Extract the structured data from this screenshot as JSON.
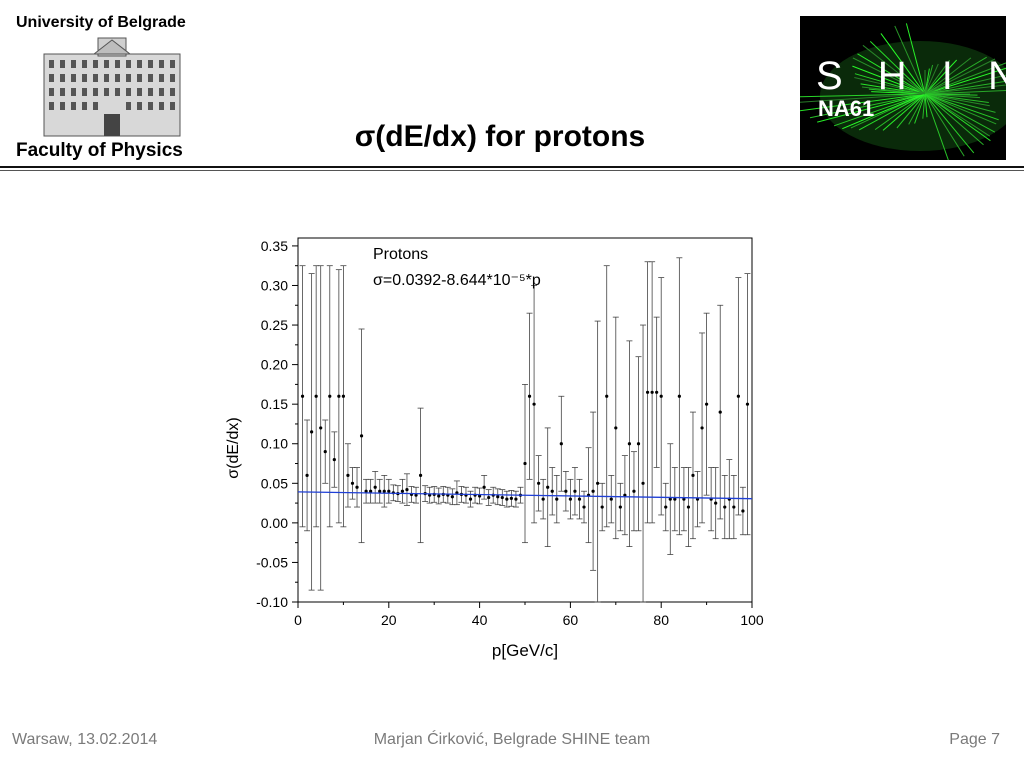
{
  "header": {
    "university": "University of Belgrade",
    "faculty": "Faculty of Physics",
    "title": "σ(dE/dx) for protons",
    "logo_main": "S H I N E",
    "logo_sub": "NA61"
  },
  "footer": {
    "left": "Warsaw, 13.02.2014",
    "center": "Marjan Ćirković, Belgrade SHINE team",
    "right": "Page 7"
  },
  "colors": {
    "fit_line": "#1f3fd6",
    "points": "#000000",
    "rule": "#111111"
  },
  "chart_data": {
    "type": "scatter",
    "xlabel": "p[GeV/c]",
    "ylabel": "σ(dE/dx)",
    "xlim": [
      0,
      100
    ],
    "ylim": [
      -0.1,
      0.36
    ],
    "x_ticks": [
      "0",
      "20",
      "40",
      "60",
      "80",
      "100"
    ],
    "y_ticks": [
      "-0.10",
      "-0.05",
      "0.00",
      "0.05",
      "0.10",
      "0.15",
      "0.20",
      "0.25",
      "0.30",
      "0.35"
    ],
    "annotation_line1": "Protons",
    "annotation_line2": "σ=0.0392-8.644*10⁻⁵*p",
    "fit": {
      "intercept": 0.0392,
      "slope": -8.644e-05
    },
    "series": [
      {
        "x": [
          1,
          2,
          3,
          4,
          5,
          6,
          7,
          8,
          9,
          10,
          11,
          12,
          13,
          14,
          15,
          16,
          17,
          18,
          19,
          20,
          21,
          22,
          23,
          24,
          25,
          26,
          27,
          28,
          29,
          30,
          31,
          32,
          33,
          34,
          35,
          36,
          37,
          38,
          39,
          40,
          41,
          42,
          43,
          44,
          45,
          46,
          47,
          48,
          49,
          50,
          51,
          52,
          53,
          54,
          55,
          56,
          57,
          58,
          59,
          60,
          61,
          62,
          63,
          64,
          65,
          66,
          67,
          68,
          69,
          70,
          71,
          72,
          73,
          74,
          75,
          76,
          77,
          78,
          79,
          80,
          81,
          82,
          83,
          84,
          85,
          86,
          87,
          88,
          89,
          90,
          91,
          92,
          93,
          94,
          95,
          96,
          97,
          98,
          99
        ],
        "y": [
          0.16,
          0.06,
          0.115,
          0.16,
          0.12,
          0.09,
          0.16,
          0.08,
          0.16,
          0.16,
          0.06,
          0.05,
          0.045,
          0.11,
          0.04,
          0.04,
          0.045,
          0.04,
          0.04,
          0.04,
          0.038,
          0.037,
          0.04,
          0.042,
          0.036,
          0.035,
          0.06,
          0.037,
          0.035,
          0.036,
          0.034,
          0.036,
          0.035,
          0.033,
          0.038,
          0.036,
          0.035,
          0.03,
          0.035,
          0.034,
          0.045,
          0.032,
          0.035,
          0.033,
          0.032,
          0.03,
          0.031,
          0.03,
          0.035,
          0.075,
          0.16,
          0.15,
          0.05,
          0.03,
          0.045,
          0.04,
          0.03,
          0.1,
          0.04,
          0.03,
          0.04,
          0.03,
          0.02,
          0.035,
          0.04,
          0.05,
          0.02,
          0.16,
          0.03,
          0.12,
          0.02,
          0.035,
          0.1,
          0.04,
          0.1,
          0.05,
          0.165,
          0.165,
          0.165,
          0.16,
          0.02,
          0.03,
          0.03,
          0.16,
          0.03,
          0.02,
          0.06,
          0.03,
          0.12,
          0.15,
          0.03,
          0.025,
          0.14,
          0.02,
          0.03,
          0.02,
          0.16,
          0.015,
          0.15
        ],
        "yerr": [
          0.165,
          0.07,
          0.2,
          0.165,
          0.205,
          0.04,
          0.165,
          0.035,
          0.16,
          0.165,
          0.04,
          0.02,
          0.025,
          0.135,
          0.015,
          0.015,
          0.02,
          0.015,
          0.02,
          0.015,
          0.01,
          0.01,
          0.015,
          0.02,
          0.01,
          0.01,
          0.085,
          0.01,
          0.01,
          0.01,
          0.01,
          0.01,
          0.01,
          0.01,
          0.015,
          0.01,
          0.01,
          0.01,
          0.01,
          0.01,
          0.015,
          0.01,
          0.01,
          0.01,
          0.01,
          0.01,
          0.01,
          0.01,
          0.01,
          0.1,
          0.105,
          0.15,
          0.035,
          0.025,
          0.075,
          0.03,
          0.03,
          0.06,
          0.025,
          0.025,
          0.03,
          0.025,
          0.02,
          0.06,
          0.1,
          0.205,
          0.03,
          0.165,
          0.03,
          0.14,
          0.03,
          0.05,
          0.13,
          0.05,
          0.11,
          0.2,
          0.165,
          0.165,
          0.095,
          0.15,
          0.03,
          0.07,
          0.04,
          0.175,
          0.04,
          0.05,
          0.08,
          0.035,
          0.12,
          0.115,
          0.04,
          0.045,
          0.135,
          0.04,
          0.05,
          0.04,
          0.15,
          0.03,
          0.165
        ]
      }
    ]
  }
}
